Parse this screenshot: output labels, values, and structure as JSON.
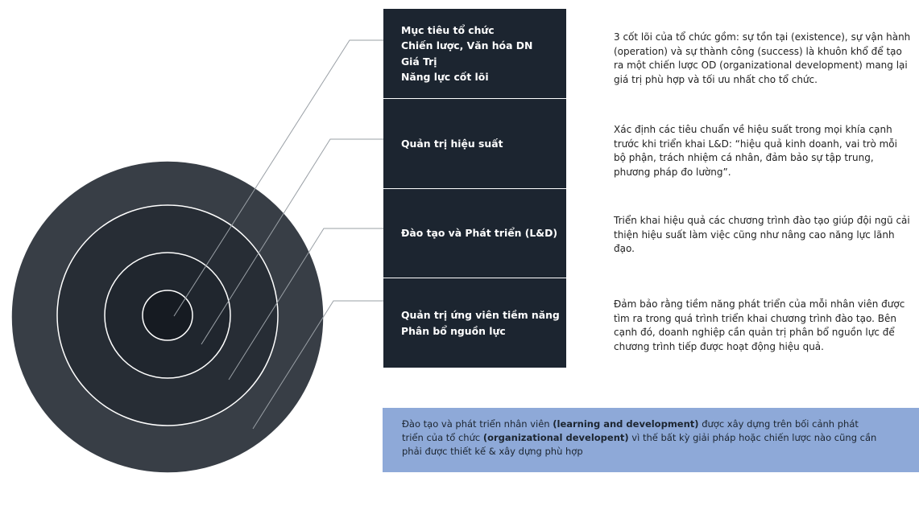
{
  "colors": {
    "circle_outer": "#383e46",
    "circle_ring2": "#272d35",
    "circle_ring3": "#20262e",
    "circle_center": "#161b22",
    "ring_stroke": "#ffffff",
    "connector": "#9aa0a6",
    "block_bg": "#1c2530",
    "note_bg": "#8ea9d8"
  },
  "blocks": [
    {
      "lines": [
        "Mục tiêu tổ chức",
        "Chiến lược, Văn hóa DN",
        "Giá Trị",
        "Năng lực cốt lõi"
      ]
    },
    {
      "lines": [
        "Quản trị hiệu suất"
      ]
    },
    {
      "lines": [
        "Đào tạo và Phát triển (L&D)"
      ]
    },
    {
      "lines": [
        "Quản trị ứng viên tiềm năng",
        "Phân bổ nguồn lực"
      ]
    }
  ],
  "descriptions": [
    "3 cốt lõi của tổ chức gồm: sự tồn tại (existence), sự vận hành (operation) và sự thành công (success) là khuôn khổ để tạo ra một chiến lược OD (organizational development) mang lại giá trị phù hợp và tối ưu nhất cho tổ chức.",
    "Xác định các tiêu chuẩn về hiệu suất trong mọi khía cạnh trước khi triển khai L&D: “hiệu quả kinh doanh, vai trò mỗi bộ phận, trách nhiệm cá nhân, đảm bảo sự tập trung, phương pháp đo lường”.",
    "Triển khai hiệu quả các chương trình đào tạo giúp đội ngũ cải thiện hiệu suất làm việc cũng như nâng cao năng lực lãnh đạo.",
    "Đảm bảo rằng tiềm năng phát triển của mỗi nhân viên được tìm ra trong quá trình triển khai chương trình đào tạo. Bên cạnh đó, doanh nghiệp cần quản trị phân bổ nguồn lực để chương trình tiếp được hoạt động hiệu quả."
  ],
  "note": {
    "text_1": "Đào tạo và phát triển nhân viên ",
    "bold_1": "(learning and development)",
    "text_2": " được xây dựng trên bối cảnh phát triển của tổ chức ",
    "bold_2": "(organizational developent)",
    "text_3": " vì thế bất kỳ giải pháp hoặc chiến lược nào cũng cần phải được thiết kế & xây dựng phù hợp"
  }
}
